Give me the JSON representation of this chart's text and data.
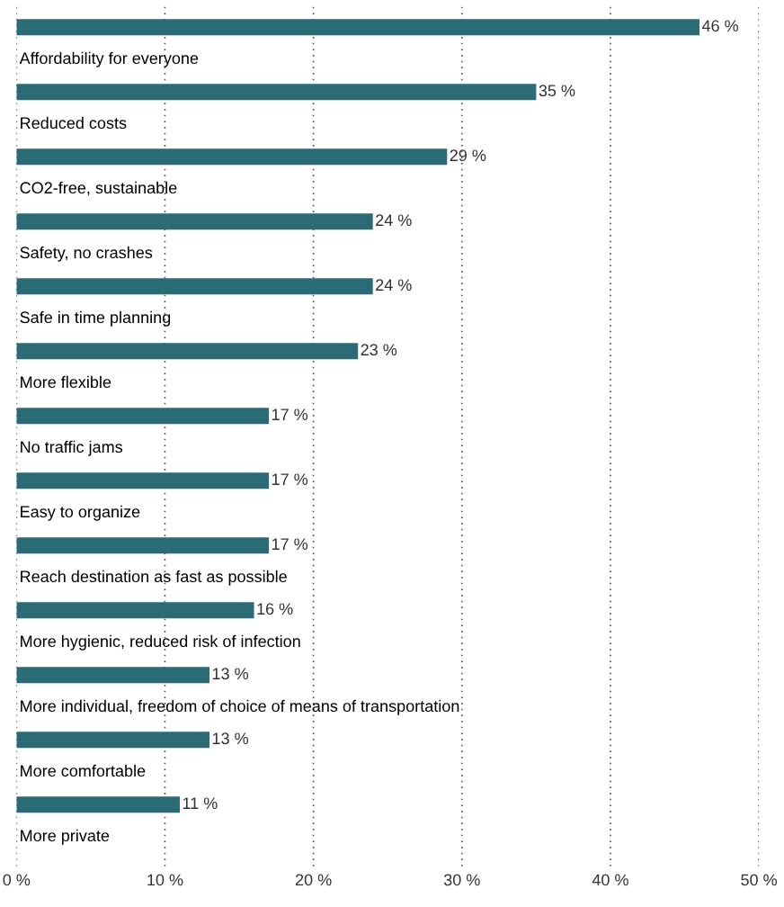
{
  "chart_data": {
    "type": "bar",
    "orientation": "horizontal",
    "categories": [
      "Affordability for everyone",
      "Reduced costs",
      "CO2-free, sustainable",
      "Safety, no crashes",
      "Safe in time planning",
      "More flexible",
      "No traffic jams",
      "Easy to organize",
      "Reach destination as fast as possible",
      "More hygienic, reduced risk of infection",
      "More individual, freedom of choice of means of transportation",
      "More comfortable",
      "More private"
    ],
    "values": [
      46,
      35,
      29,
      24,
      24,
      23,
      17,
      17,
      17,
      16,
      13,
      13,
      11
    ],
    "value_labels": [
      "46 %",
      "35 %",
      "29 %",
      "24 %",
      "24 %",
      "23 %",
      "17 %",
      "17 %",
      "17 %",
      "16 %",
      "13 %",
      "13 %",
      "11 %"
    ],
    "color": "#2a6b76",
    "xlim": [
      0,
      50
    ],
    "xticks": [
      {
        "value": 0,
        "label": "0 %"
      },
      {
        "value": 10,
        "label": "10 %"
      },
      {
        "value": 20,
        "label": "20 %"
      },
      {
        "value": 30,
        "label": "30 %"
      },
      {
        "value": 40,
        "label": "40 %"
      },
      {
        "value": 50,
        "label": "50 %"
      }
    ],
    "grid": "x",
    "legend": false
  }
}
